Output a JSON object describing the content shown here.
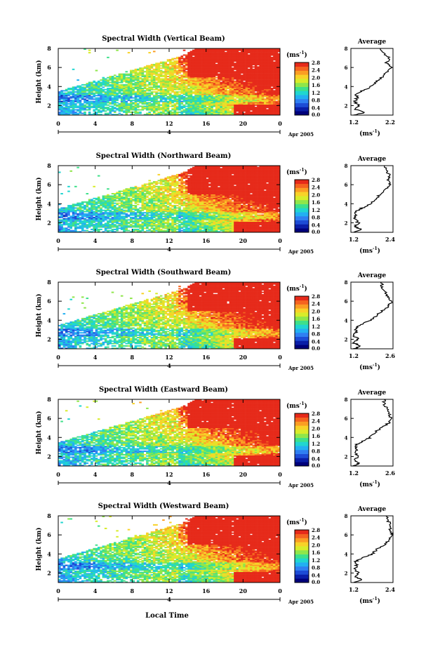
{
  "figure": {
    "xlabel": "Local Time",
    "date_label": "Apr 2005",
    "day_label": "4",
    "avg_title": "Average",
    "ylabel": "Height (km)",
    "units_label": "(ms",
    "units_sup": "-1",
    "units_close": ")",
    "colorscale": [
      "#00007a",
      "#0a1ea8",
      "#1d4cd6",
      "#2f7ff2",
      "#22b0f2",
      "#20d6d0",
      "#3ee08a",
      "#8fe64a",
      "#d8ec2a",
      "#f8d228",
      "#fb9e24",
      "#f56420",
      "#e62a1a"
    ],
    "colorbar_ticks": [
      "0.0",
      "0.4",
      "0.8",
      "1.2",
      "1.6",
      "2.0",
      "2.4",
      "2.8"
    ]
  },
  "chart_data": [
    {
      "type": "heatmap",
      "title": "Spectral Width (Vertical Beam)",
      "xlabel": "Local Time",
      "ylabel": "Height (km)",
      "x_ticks": [
        "0",
        "4",
        "8",
        "12",
        "16",
        "20",
        "0"
      ],
      "y_ticks": [
        "2",
        "4",
        "6",
        "8"
      ],
      "xlim": [
        0,
        24
      ],
      "ylim": [
        1,
        8
      ],
      "z_unit": "ms-1",
      "zlim": [
        0,
        2.8
      ],
      "colorbar_ticks": [
        "0.0",
        "0.4",
        "0.8",
        "1.2",
        "1.6",
        "2.0",
        "2.4",
        "2.8"
      ],
      "profile": {
        "title": "Average",
        "x_ticks": [
          "1.2",
          "2.2"
        ],
        "xlim": [
          1.2,
          2.2
        ],
        "y_ticks": [
          "2",
          "4",
          "6",
          "8"
        ],
        "heights": [
          1.0,
          1.3,
          1.6,
          2.0,
          2.4,
          2.8,
          3.2,
          3.6,
          4.0,
          4.5,
          5.0,
          5.5,
          6.0,
          6.5,
          7.0,
          7.5,
          8.0
        ],
        "values": [
          1.3,
          1.55,
          1.28,
          1.4,
          1.28,
          1.35,
          1.32,
          1.5,
          1.68,
          1.8,
          1.95,
          2.05,
          2.15,
          2.05,
          2.1,
          2.0,
          1.9
        ]
      }
    },
    {
      "type": "heatmap",
      "title": "Spectral Width (Northward Beam)",
      "xlabel": "Local Time",
      "ylabel": "Height (km)",
      "x_ticks": [
        "0",
        "4",
        "8",
        "12",
        "16",
        "20",
        "0"
      ],
      "y_ticks": [
        "2",
        "4",
        "6",
        "8"
      ],
      "xlim": [
        0,
        24
      ],
      "ylim": [
        1,
        8
      ],
      "z_unit": "ms-1",
      "zlim": [
        0,
        2.8
      ],
      "colorbar_ticks": [
        "0.0",
        "0.4",
        "0.8",
        "1.2",
        "1.6",
        "2.0",
        "2.4",
        "2.8"
      ],
      "profile": {
        "title": "Average",
        "x_ticks": [
          "1.2",
          "2.4"
        ],
        "xlim": [
          1.2,
          2.4
        ],
        "y_ticks": [
          "2",
          "4",
          "6",
          "8"
        ],
        "heights": [
          1.0,
          1.3,
          1.6,
          2.0,
          2.4,
          2.8,
          3.2,
          3.6,
          4.0,
          4.5,
          5.0,
          5.5,
          6.0,
          6.5,
          7.0,
          7.5,
          8.0
        ],
        "values": [
          1.3,
          1.5,
          1.3,
          1.42,
          1.3,
          1.35,
          1.33,
          1.55,
          1.75,
          1.9,
          2.05,
          2.2,
          2.3,
          2.25,
          2.3,
          2.2,
          2.15
        ]
      }
    },
    {
      "type": "heatmap",
      "title": "Spectral Width (Southward Beam)",
      "xlabel": "Local Time",
      "ylabel": "Height (km)",
      "x_ticks": [
        "0",
        "4",
        "8",
        "12",
        "16",
        "20",
        "0"
      ],
      "y_ticks": [
        "2",
        "4",
        "6",
        "8"
      ],
      "xlim": [
        0,
        24
      ],
      "ylim": [
        1,
        8
      ],
      "z_unit": "ms-1",
      "zlim": [
        0,
        2.8
      ],
      "colorbar_ticks": [
        "0.0",
        "0.4",
        "0.8",
        "1.2",
        "1.6",
        "2.0",
        "2.4",
        "2.8"
      ],
      "profile": {
        "title": "Average",
        "x_ticks": [
          "1.2",
          "2.6"
        ],
        "xlim": [
          1.2,
          2.6
        ],
        "y_ticks": [
          "2",
          "4",
          "6",
          "8"
        ],
        "heights": [
          1.0,
          1.3,
          1.6,
          2.0,
          2.4,
          2.8,
          3.2,
          3.6,
          4.0,
          4.5,
          5.0,
          5.5,
          6.0,
          6.5,
          7.0,
          7.5,
          8.0
        ],
        "values": [
          1.3,
          1.55,
          1.3,
          1.45,
          1.3,
          1.38,
          1.35,
          1.6,
          1.85,
          2.05,
          2.25,
          2.45,
          2.55,
          2.4,
          2.35,
          2.25,
          2.2
        ]
      }
    },
    {
      "type": "heatmap",
      "title": "Spectral Width (Eastward Beam)",
      "xlabel": "Local Time",
      "ylabel": "Height (km)",
      "x_ticks": [
        "0",
        "4",
        "8",
        "12",
        "16",
        "20",
        "0"
      ],
      "y_ticks": [
        "2",
        "4",
        "6",
        "8"
      ],
      "xlim": [
        0,
        24
      ],
      "ylim": [
        1,
        8
      ],
      "z_unit": "ms-1",
      "zlim": [
        0,
        2.8
      ],
      "colorbar_ticks": [
        "0.0",
        "0.4",
        "0.8",
        "1.2",
        "1.6",
        "2.0",
        "2.4",
        "2.8"
      ],
      "profile": {
        "title": "Average",
        "x_ticks": [
          "1.2",
          "2.6"
        ],
        "xlim": [
          1.2,
          2.6
        ],
        "y_ticks": [
          "2",
          "4",
          "6",
          "8"
        ],
        "heights": [
          1.0,
          1.3,
          1.6,
          2.0,
          2.4,
          2.8,
          3.2,
          3.6,
          4.0,
          4.5,
          5.0,
          5.5,
          6.0,
          6.5,
          7.0,
          7.5,
          8.0
        ],
        "values": [
          1.3,
          1.5,
          1.3,
          1.45,
          1.32,
          1.4,
          1.35,
          1.6,
          1.85,
          2.0,
          2.2,
          2.45,
          2.55,
          2.45,
          2.4,
          2.3,
          2.3
        ]
      }
    },
    {
      "type": "heatmap",
      "title": "Spectral Width (Westward Beam)",
      "xlabel": "Local Time",
      "ylabel": "Height (km)",
      "x_ticks": [
        "0",
        "4",
        "8",
        "12",
        "16",
        "20",
        "0"
      ],
      "y_ticks": [
        "2",
        "4",
        "6",
        "8"
      ],
      "xlim": [
        0,
        24
      ],
      "ylim": [
        1,
        8
      ],
      "z_unit": "ms-1",
      "zlim": [
        0,
        2.8
      ],
      "colorbar_ticks": [
        "0.0",
        "0.4",
        "0.8",
        "1.2",
        "1.6",
        "2.0",
        "2.4",
        "2.8"
      ],
      "profile": {
        "title": "Average",
        "x_ticks": [
          "1.2",
          "2.4"
        ],
        "xlim": [
          1.2,
          2.4
        ],
        "y_ticks": [
          "2",
          "4",
          "6",
          "8"
        ],
        "heights": [
          1.0,
          1.3,
          1.6,
          2.0,
          2.4,
          2.8,
          3.2,
          3.6,
          4.0,
          4.5,
          5.0,
          5.5,
          6.0,
          6.5,
          7.0,
          7.5,
          8.0
        ],
        "values": [
          1.3,
          1.5,
          1.3,
          1.42,
          1.3,
          1.36,
          1.33,
          1.55,
          1.8,
          1.95,
          2.15,
          2.3,
          2.4,
          2.3,
          2.35,
          2.25,
          2.2
        ]
      }
    }
  ]
}
